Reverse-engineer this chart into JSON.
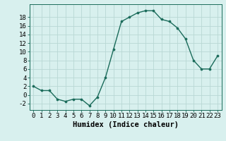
{
  "x": [
    0,
    1,
    2,
    3,
    4,
    5,
    6,
    7,
    8,
    9,
    10,
    11,
    12,
    13,
    14,
    15,
    16,
    17,
    18,
    19,
    20,
    21,
    22,
    23
  ],
  "y": [
    2,
    1,
    1,
    -1,
    -1.5,
    -1,
    -1,
    -2.5,
    -0.5,
    4,
    10.5,
    17,
    18,
    19,
    19.5,
    19.5,
    17.5,
    17,
    15.5,
    13,
    8,
    6,
    6,
    9
  ],
  "line_color": "#1a6b5a",
  "marker": "o",
  "marker_size": 2.2,
  "bg_color": "#d8f0ee",
  "grid_color": "#b8d8d4",
  "xlabel": "Humidex (Indice chaleur)",
  "xlim": [
    -0.5,
    23.5
  ],
  "ylim": [
    -3.5,
    21
  ],
  "xticks": [
    0,
    1,
    2,
    3,
    4,
    5,
    6,
    7,
    8,
    9,
    10,
    11,
    12,
    13,
    14,
    15,
    16,
    17,
    18,
    19,
    20,
    21,
    22,
    23
  ],
  "yticks": [
    -2,
    0,
    2,
    4,
    6,
    8,
    10,
    12,
    14,
    16,
    18
  ],
  "xlabel_fontsize": 7.5,
  "tick_fontsize": 6.5,
  "line_width": 1.0
}
